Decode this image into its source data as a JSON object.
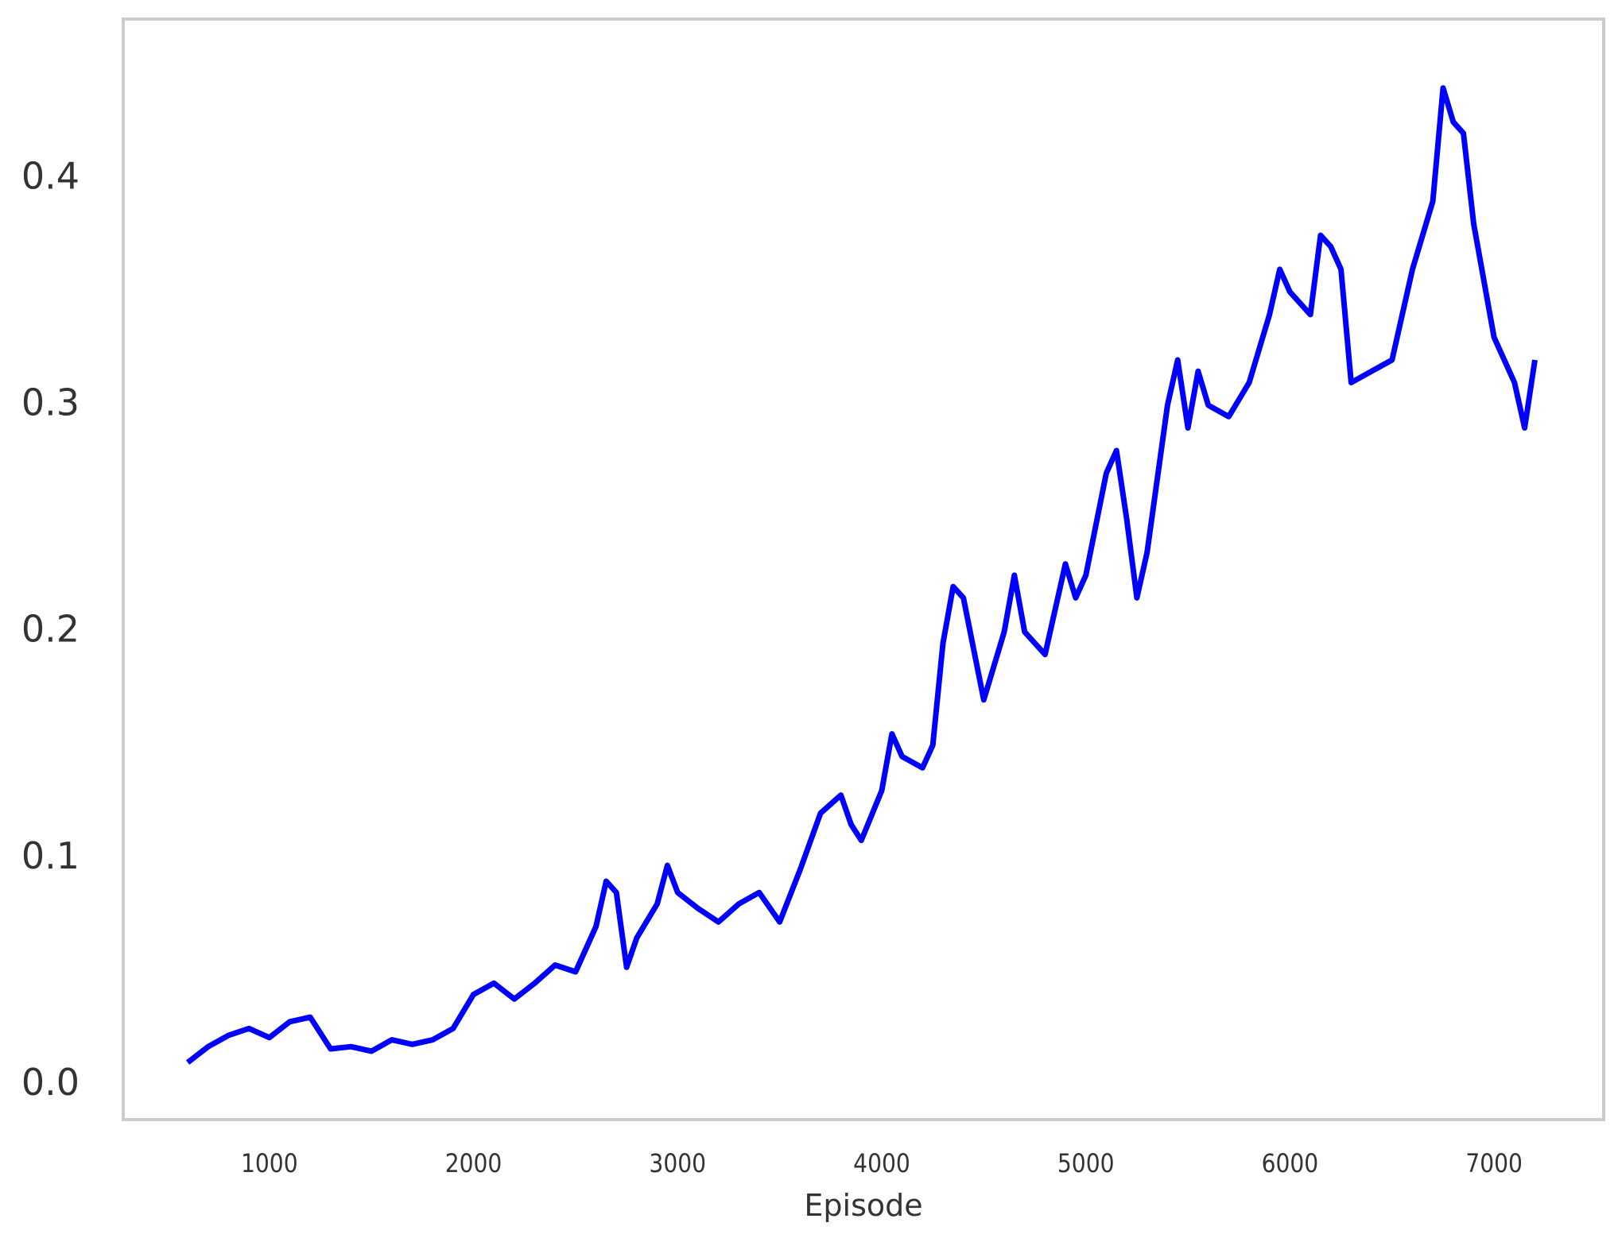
{
  "chart_data": {
    "type": "line",
    "x_label": "Episode",
    "x": [
      600,
      700,
      800,
      900,
      1000,
      1100,
      1200,
      1300,
      1400,
      1500,
      1600,
      1700,
      1800,
      1900,
      2000,
      2100,
      2200,
      2300,
      2400,
      2500,
      2600,
      2650,
      2700,
      2750,
      2800,
      2900,
      2950,
      3000,
      3100,
      3200,
      3300,
      3400,
      3500,
      3600,
      3700,
      3800,
      3850,
      3900,
      4000,
      4050,
      4100,
      4200,
      4250,
      4300,
      4350,
      4400,
      4500,
      4600,
      4650,
      4700,
      4800,
      4900,
      4950,
      5000,
      5100,
      5150,
      5200,
      5250,
      5300,
      5400,
      5450,
      5500,
      5550,
      5600,
      5700,
      5800,
      5900,
      5950,
      6000,
      6100,
      6150,
      6200,
      6250,
      6300,
      6400,
      6500,
      6600,
      6700,
      6750,
      6800,
      6850,
      6900,
      7000,
      7100,
      7150,
      7200
    ],
    "series": [
      {
        "color": "#0000ff",
        "values": [
          0.01,
          0.017,
          0.022,
          0.025,
          0.021,
          0.028,
          0.03,
          0.016,
          0.017,
          0.015,
          0.02,
          0.018,
          0.02,
          0.025,
          0.04,
          0.045,
          0.038,
          0.045,
          0.053,
          0.05,
          0.07,
          0.09,
          0.085,
          0.052,
          0.065,
          0.08,
          0.097,
          0.085,
          0.078,
          0.072,
          0.08,
          0.085,
          0.072,
          0.095,
          0.12,
          0.128,
          0.115,
          0.108,
          0.13,
          0.155,
          0.145,
          0.14,
          0.15,
          0.195,
          0.22,
          0.215,
          0.17,
          0.2,
          0.225,
          0.2,
          0.19,
          0.23,
          0.215,
          0.225,
          0.27,
          0.28,
          0.25,
          0.215,
          0.235,
          0.3,
          0.32,
          0.29,
          0.315,
          0.3,
          0.295,
          0.31,
          0.34,
          0.36,
          0.35,
          0.34,
          0.375,
          0.37,
          0.36,
          0.31,
          0.315,
          0.32,
          0.36,
          0.39,
          0.44,
          0.425,
          0.42,
          0.38,
          0.33,
          0.31,
          0.29,
          0.32
        ]
      }
    ],
    "xlim": [
      284,
      7537
    ],
    "ylim": [
      -0.0152,
      0.4704
    ],
    "xticks": [
      1000,
      2000,
      3000,
      4000,
      5000,
      6000,
      7000
    ],
    "yticks": [
      {
        "value": 0,
        "label": "0.0"
      },
      0.1,
      0.2,
      0.3,
      0.4
    ],
    "grid": false
  }
}
